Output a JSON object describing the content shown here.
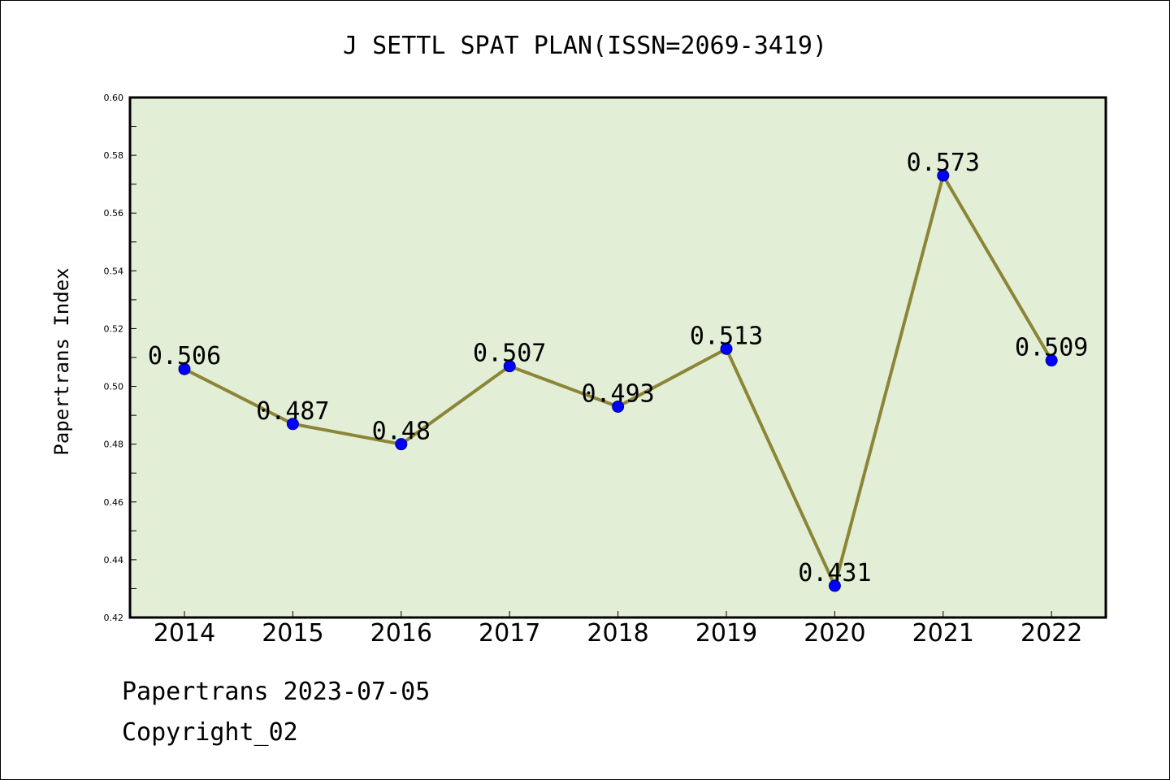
{
  "chart_data": {
    "type": "line",
    "title": "J SETTL SPAT PLAN(ISSN=2069-3419)",
    "xlabel": "",
    "ylabel": "Papertrans Index",
    "categories": [
      "2014",
      "2015",
      "2016",
      "2017",
      "2018",
      "2019",
      "2020",
      "2021",
      "2022"
    ],
    "values": [
      0.506,
      0.487,
      0.48,
      0.507,
      0.493,
      0.513,
      0.431,
      0.573,
      0.509
    ],
    "data_labels": [
      "0.506",
      "0.487",
      "0.48",
      "0.507",
      "0.493",
      "0.513",
      "0.431",
      "0.573",
      "0.509"
    ],
    "ylim": [
      0.42,
      0.6
    ],
    "yticks": [
      "0.42",
      "0.44",
      "0.46",
      "0.48",
      "0.50",
      "0.52",
      "0.54",
      "0.56",
      "0.58",
      "0.60"
    ],
    "grid": false,
    "legend": "none",
    "colors": {
      "plot_background": "#e2efd6",
      "line": "#8c8437",
      "marker": "#0000ff",
      "axes": "#000000"
    }
  },
  "footer": {
    "source": "Papertrans 2023-07-05",
    "copyright": "Copyright_02"
  }
}
